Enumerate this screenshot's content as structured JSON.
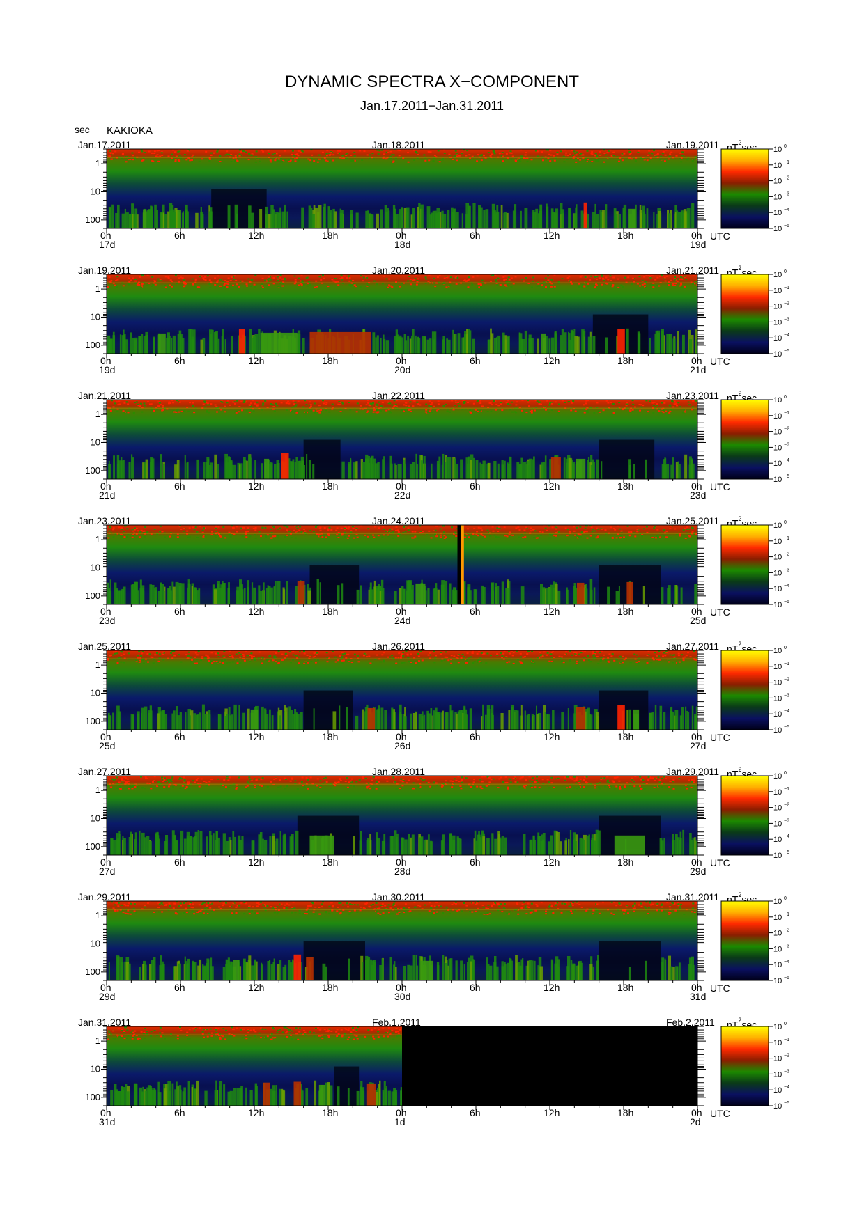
{
  "header": {
    "title": "DYNAMIC SPECTRA X−COMPONENT",
    "subtitle": "Jan.17.2011−Jan.31.2011",
    "y_unit": "sec",
    "station": "KAKIOKA"
  },
  "chart_data": {
    "type": "heatmap",
    "title": "DYNAMIC SPECTRA X−COMPONENT",
    "subtitle": "Jan.17.2011−Jan.31.2011",
    "station": "KAKIOKA",
    "y_axis": {
      "label": "sec",
      "scale": "log",
      "tick_labels": [
        "1",
        "10",
        "100"
      ],
      "range_sec": [
        0.3,
        200
      ]
    },
    "x_axis": {
      "tick_labels": [
        "0h",
        "6h",
        "12h",
        "18h",
        "0h",
        "6h",
        "12h",
        "18h",
        "0h"
      ],
      "utc_label": "UTC"
    },
    "colorbar": {
      "unit_base": "nT",
      "unit_sup": "2",
      "unit_tail": "sec",
      "scale": "log",
      "ticks": [
        {
          "base": "10",
          "exp": "0"
        },
        {
          "base": "10",
          "exp": "−1"
        },
        {
          "base": "10",
          "exp": "−2"
        },
        {
          "base": "10",
          "exp": "−3"
        },
        {
          "base": "10",
          "exp": "−4"
        },
        {
          "base": "10",
          "exp": "−5"
        }
      ],
      "colors": [
        "#ffff00",
        "#ffb000",
        "#ff2a00",
        "#8a1e00",
        "#1c8a00",
        "#0a3a18",
        "#0a1060",
        "#000018"
      ]
    },
    "panels": [
      {
        "date_left": "Jan.17.2011",
        "date_center": "Jan.18.2011",
        "date_right": "Jan.19.2011",
        "day_start": "17d",
        "day_mid": "18d",
        "day_end": "19d",
        "events": [
          {
            "hour": 3.1,
            "width_h": 0.3,
            "level": 0.45
          },
          {
            "hour": 5.9,
            "width_h": 0.3,
            "level": 0.4
          },
          {
            "hour": 38.9,
            "width_h": 0.3,
            "level": 0.9
          },
          {
            "hour": 42.7,
            "width_h": 0.6,
            "level": 0.5
          }
        ],
        "quiet": [
          [
            8.5,
            13.0
          ]
        ]
      },
      {
        "date_left": "Jan.19.2011",
        "date_center": "Jan.20.2011",
        "date_right": "Jan.21.2011",
        "day_start": "19d",
        "day_mid": "20d",
        "day_end": "21d",
        "events": [
          {
            "hour": 4.5,
            "width_h": 0.6,
            "level": 0.55
          },
          {
            "hour": 11.0,
            "width_h": 0.5,
            "level": 0.85
          },
          {
            "hour": 14.0,
            "width_h": 3.0,
            "level": 0.6
          },
          {
            "hour": 19.0,
            "width_h": 5.0,
            "level": 0.65
          },
          {
            "hour": 35.5,
            "width_h": 0.4,
            "level": 0.55
          },
          {
            "hour": 41.8,
            "width_h": 0.6,
            "level": 0.85
          }
        ],
        "quiet": [
          [
            39.5,
            44.0
          ]
        ]
      },
      {
        "date_left": "Jan.21.2011",
        "date_center": "Jan.22.2011",
        "date_right": "Jan.23.2011",
        "day_start": "21d",
        "day_mid": "22d",
        "day_end": "23d",
        "events": [
          {
            "hour": 14.5,
            "width_h": 0.6,
            "level": 0.9
          },
          {
            "hour": 13.0,
            "width_h": 0.4,
            "level": 0.55
          },
          {
            "hour": 36.5,
            "width_h": 0.8,
            "level": 0.65
          },
          {
            "hour": 38.5,
            "width_h": 0.8,
            "level": 0.55
          }
        ],
        "quiet": [
          [
            16.0,
            19.0
          ],
          [
            40.0,
            44.5
          ]
        ]
      },
      {
        "date_left": "Jan.23.2011",
        "date_center": "Jan.24.2011",
        "date_right": "Jan.25.2011",
        "day_start": "23d",
        "day_mid": "24d",
        "day_end": "25d",
        "events": [
          {
            "hour": 15.8,
            "width_h": 0.6,
            "level": 0.75
          },
          {
            "hour": 25.5,
            "width_h": 0.8,
            "level": 0.6
          },
          {
            "hour": 38.5,
            "width_h": 0.6,
            "level": 0.65
          },
          {
            "hour": 42.5,
            "width_h": 0.5,
            "level": 0.7
          }
        ],
        "quiet": [
          [
            16.5,
            20.5
          ],
          [
            40.0,
            45.0
          ]
        ],
        "gap": {
          "from_h": 28.5,
          "to_h": 28.75
        },
        "spike": {
          "hour": 28.8,
          "width_h": 0.15
        }
      },
      {
        "date_left": "Jan.25.2011",
        "date_center": "Jan.26.2011",
        "date_right": "Jan.27.2011",
        "day_start": "25d",
        "day_mid": "26d",
        "day_end": "27d",
        "events": [
          {
            "hour": 12.0,
            "width_h": 0.6,
            "level": 0.55
          },
          {
            "hour": 21.5,
            "width_h": 0.6,
            "level": 0.65
          },
          {
            "hour": 38.5,
            "width_h": 0.8,
            "level": 0.7
          },
          {
            "hour": 41.8,
            "width_h": 0.6,
            "level": 0.85
          },
          {
            "hour": 43.0,
            "width_h": 0.5,
            "level": 0.55
          }
        ],
        "quiet": [
          [
            16.0,
            20.0
          ],
          [
            40.0,
            44.0
          ]
        ]
      },
      {
        "date_left": "Jan.27.2011",
        "date_center": "Jan.28.2011",
        "date_right": "Jan.29.2011",
        "day_start": "27d",
        "day_mid": "28d",
        "day_end": "29d",
        "events": [
          {
            "hour": 17.5,
            "width_h": 2.0,
            "level": 0.5
          },
          {
            "hour": 42.5,
            "width_h": 2.5,
            "level": 0.5
          }
        ],
        "quiet": [
          [
            15.5,
            20.5
          ],
          [
            40.0,
            45.0
          ]
        ]
      },
      {
        "date_left": "Jan.29.2011",
        "date_center": "Jan.30.2011",
        "date_right": "Jan.31.2011",
        "day_start": "29d",
        "day_mid": "30d",
        "day_end": "31d",
        "events": [
          {
            "hour": 10.5,
            "width_h": 0.5,
            "level": 0.55
          },
          {
            "hour": 15.5,
            "width_h": 0.6,
            "level": 0.9
          },
          {
            "hour": 16.5,
            "width_h": 0.6,
            "level": 0.75
          },
          {
            "hour": 26.0,
            "width_h": 1.0,
            "level": 0.5
          }
        ],
        "quiet": [
          [
            16.0,
            21.0
          ],
          [
            40.0,
            45.0
          ]
        ]
      },
      {
        "date_left": "Jan.31.2011",
        "date_center": "Feb.1.2011",
        "date_right": "Feb.2.2011",
        "day_start": "31d",
        "day_mid": "1d",
        "day_end": "2d",
        "events": [
          {
            "hour": 13.0,
            "width_h": 0.6,
            "level": 0.75
          },
          {
            "hour": 15.5,
            "width_h": 0.6,
            "level": 0.8
          },
          {
            "hour": 17.5,
            "width_h": 0.5,
            "level": 0.6
          },
          {
            "hour": 21.5,
            "width_h": 0.8,
            "level": 0.7
          }
        ],
        "quiet": [
          [
            18.5,
            20.5
          ]
        ],
        "no_data_from_h": 24
      }
    ]
  }
}
